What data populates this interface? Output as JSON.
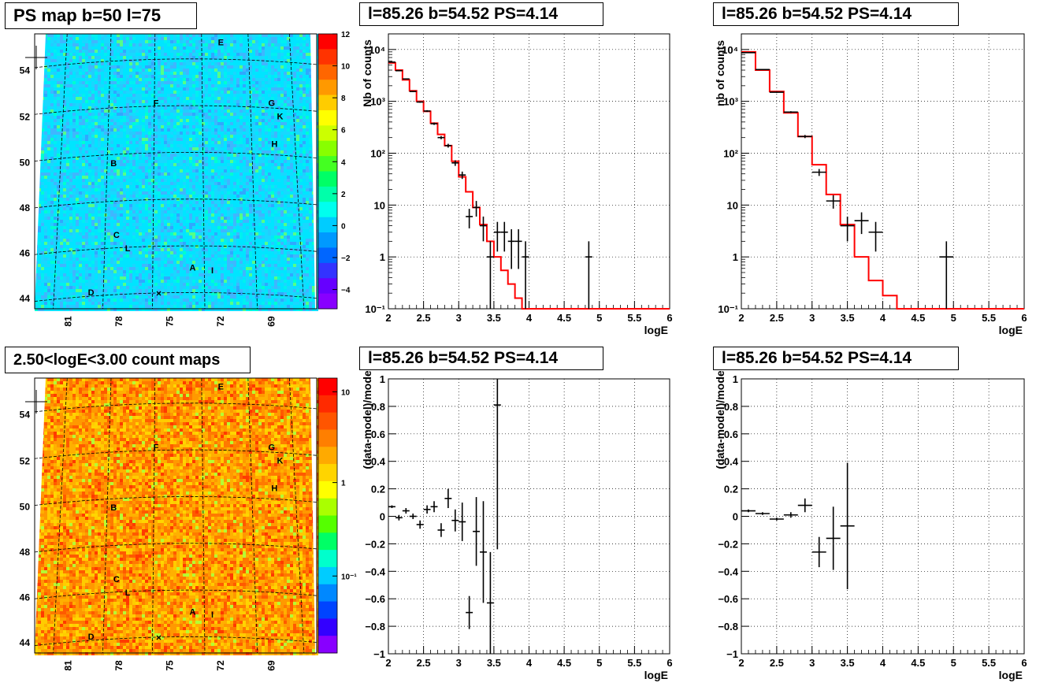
{
  "panels": {
    "ps_map": {
      "title": "PS map b=50 l=75",
      "x_ticks": [
        "81",
        "78",
        "75",
        "72",
        "69"
      ],
      "y_ticks": [
        "54",
        "52",
        "50",
        "48",
        "46",
        "44"
      ],
      "colorbar_ticks": [
        "12",
        "10",
        "8",
        "6",
        "4",
        "2",
        "0",
        "−2",
        "−4"
      ],
      "sources": [
        "E",
        "F",
        "G",
        "K",
        "H",
        "B",
        "C",
        "L",
        "A",
        "I",
        "D"
      ],
      "colors": {
        "low": "#3399ff",
        "mid": "#00e5ff",
        "high": "#66ff33"
      }
    },
    "count_map": {
      "title": "2.50<logE<3.00 count maps",
      "x_ticks": [
        "81",
        "78",
        "75",
        "72",
        "69"
      ],
      "y_ticks": [
        "54",
        "52",
        "50",
        "48",
        "46",
        "44"
      ],
      "colorbar_ticks": [
        "10",
        "1",
        "10⁻¹"
      ],
      "sources": [
        "E",
        "F",
        "G",
        "K",
        "H",
        "B",
        "C",
        "L",
        "A",
        "I",
        "D"
      ],
      "colors": {
        "low": "#ffcc00",
        "mid": "#ff8800",
        "high": "#ff3300"
      }
    },
    "spectrum_left": {
      "title": "l=85.26 b=54.52 PS=4.14"
    },
    "spectrum_right": {
      "title": "l=85.26 b=54.52 PS=4.14"
    },
    "residual_left": {
      "title": "l=85.26 b=54.52 PS=4.14"
    },
    "residual_right": {
      "title": "l=85.26 b=54.52 PS=4.14"
    }
  },
  "chart_data": [
    {
      "type": "line",
      "panel": "spectrum_left",
      "xlabel": "logE",
      "ylabel": "Nb of counts",
      "xlim": [
        2,
        6
      ],
      "ylim": [
        0.1,
        20000
      ],
      "yscale": "log",
      "x_ticks": [
        "2",
        "2.5",
        "3",
        "3.5",
        "4",
        "4.5",
        "5",
        "5.5",
        "6"
      ],
      "y_ticks": [
        "10⁻¹",
        "1",
        "10",
        "10²",
        "10³",
        "10⁴"
      ],
      "grid": true,
      "model_color": "#ff0000",
      "model": {
        "edges": [
          2.0,
          2.1,
          2.2,
          2.3,
          2.4,
          2.5,
          2.6,
          2.7,
          2.8,
          2.9,
          3.0,
          3.1,
          3.2,
          3.3,
          3.4,
          3.5,
          3.6,
          3.7,
          3.8,
          3.9,
          4.0,
          6.0
        ],
        "values": [
          5500,
          4000,
          2600,
          1600,
          1000,
          640,
          380,
          230,
          140,
          70,
          35,
          18,
          9,
          4.2,
          2,
          1,
          0.55,
          0.3,
          0.16,
          0.1,
          0.1
        ]
      },
      "data": {
        "x": [
          2.05,
          2.15,
          2.25,
          2.35,
          2.45,
          2.55,
          2.65,
          2.75,
          2.85,
          2.95,
          3.05,
          3.15,
          3.25,
          3.35,
          3.45,
          3.55,
          3.65,
          3.75,
          3.85,
          3.95,
          4.85
        ],
        "y": [
          5700,
          3900,
          2700,
          1550,
          970,
          650,
          370,
          200,
          140,
          65,
          38,
          6,
          9,
          4,
          1,
          3,
          3,
          2,
          2,
          1,
          1
        ]
      }
    },
    {
      "type": "line",
      "panel": "spectrum_right",
      "xlabel": "logE",
      "ylabel": "nb of counts",
      "xlim": [
        2,
        6
      ],
      "ylim": [
        0.1,
        20000
      ],
      "yscale": "log",
      "x_ticks": [
        "2",
        "2.5",
        "3",
        "3.5",
        "4",
        "4.5",
        "5",
        "5.5",
        "6"
      ],
      "y_ticks": [
        "10⁻¹",
        "1",
        "10",
        "10²",
        "10³",
        "10⁴"
      ],
      "grid": true,
      "model_color": "#ff0000",
      "model": {
        "edges": [
          2.0,
          2.2,
          2.4,
          2.6,
          2.8,
          3.0,
          3.2,
          3.4,
          3.6,
          3.8,
          4.0,
          4.2,
          6.0
        ],
        "values": [
          9000,
          4000,
          1550,
          600,
          210,
          60,
          16,
          4.2,
          1,
          0.35,
          0.18,
          0.1
        ]
      },
      "data": {
        "x": [
          2.1,
          2.3,
          2.5,
          2.7,
          2.9,
          3.1,
          3.3,
          3.5,
          3.7,
          3.9,
          4.9
        ],
        "y": [
          8700,
          4100,
          1500,
          620,
          210,
          43,
          12,
          4,
          5,
          3,
          1
        ]
      }
    },
    {
      "type": "scatter",
      "panel": "residual_left",
      "xlabel": "logE",
      "ylabel": "(data-model)/model",
      "xlim": [
        2,
        6
      ],
      "ylim": [
        -1,
        1
      ],
      "x_ticks": [
        "2",
        "2.5",
        "3",
        "3.5",
        "4",
        "4.5",
        "5",
        "5.5",
        "6"
      ],
      "y_ticks": [
        "−1",
        "−0.8",
        "−0.6",
        "−0.4",
        "−0.2",
        "0",
        "0.2",
        "0.4",
        "0.6",
        "0.8",
        "1"
      ],
      "grid": true,
      "data": {
        "x": [
          2.05,
          2.15,
          2.25,
          2.35,
          2.45,
          2.55,
          2.65,
          2.75,
          2.85,
          2.95,
          3.05,
          3.15,
          3.25,
          3.35,
          3.45,
          3.55
        ],
        "y": [
          0.07,
          -0.01,
          0.04,
          0.0,
          -0.06,
          0.05,
          0.07,
          -0.1,
          0.13,
          -0.03,
          -0.04,
          -0.7,
          -0.11,
          -0.26,
          -0.63,
          0.81
        ],
        "err": [
          0.01,
          0.02,
          0.02,
          0.02,
          0.03,
          0.03,
          0.04,
          0.05,
          0.07,
          0.08,
          0.14,
          0.12,
          0.25,
          0.37,
          0.37,
          1.05
        ]
      }
    },
    {
      "type": "scatter",
      "panel": "residual_right",
      "xlabel": "logE",
      "ylabel": "(data-model)/model",
      "xlim": [
        2,
        6
      ],
      "ylim": [
        -1,
        1
      ],
      "x_ticks": [
        "2",
        "2.5",
        "3",
        "3.5",
        "4",
        "4.5",
        "5",
        "5.5",
        "6"
      ],
      "y_ticks": [
        "−1",
        "−0.8",
        "−0.6",
        "−0.4",
        "−0.2",
        "0",
        "0.2",
        "0.4",
        "0.6",
        "0.8",
        "1"
      ],
      "grid": true,
      "data": {
        "x": [
          2.1,
          2.3,
          2.5,
          2.7,
          2.9,
          3.1,
          3.3,
          3.5
        ],
        "y": [
          0.04,
          0.02,
          -0.02,
          0.01,
          0.08,
          -0.26,
          -0.16,
          -0.07
        ],
        "err": [
          0.01,
          0.01,
          0.01,
          0.02,
          0.05,
          0.11,
          0.23,
          0.46
        ]
      }
    }
  ]
}
